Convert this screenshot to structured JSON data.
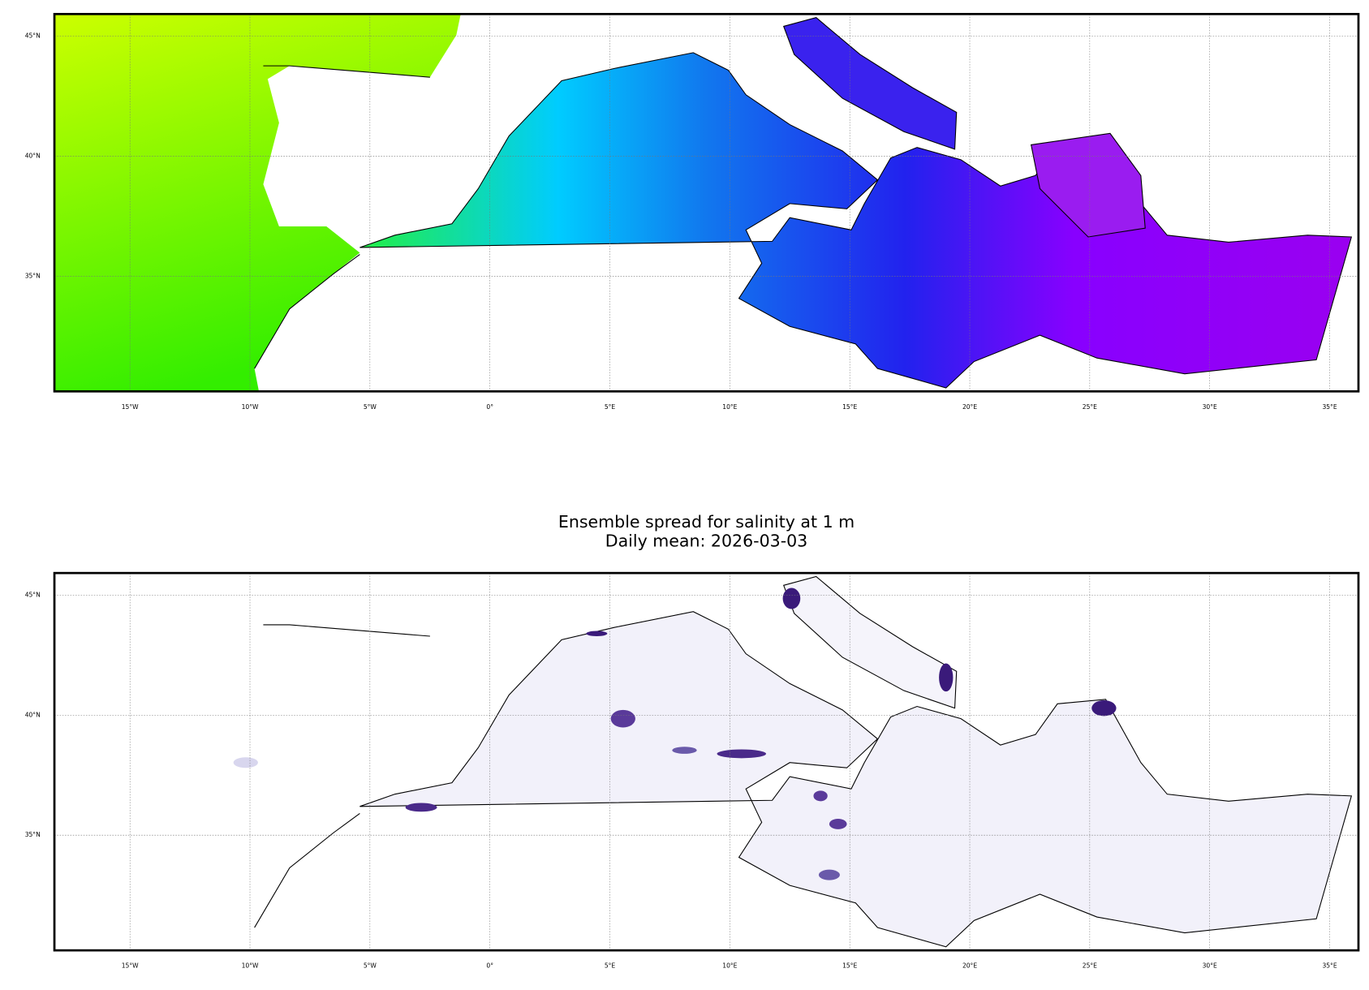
{
  "title": [
    "Ensemble spread for salinity at 1 m",
    "Daily mean: 2026-03-03"
  ],
  "panels": [
    {
      "xlim": [
        -18.15,
        36.2
      ],
      "ylim": [
        30.2,
        45.92
      ],
      "xticks": [
        {
          "value": -15,
          "label": "15°W"
        },
        {
          "value": -10,
          "label": "10°W"
        },
        {
          "value": -5,
          "label": "5°W"
        },
        {
          "value": 0,
          "label": "0°"
        },
        {
          "value": 5,
          "label": "5°E"
        },
        {
          "value": 10,
          "label": "10°E"
        },
        {
          "value": 15,
          "label": "15°E"
        },
        {
          "value": 20,
          "label": "20°E"
        },
        {
          "value": 25,
          "label": "25°E"
        },
        {
          "value": 30,
          "label": "30°E"
        },
        {
          "value": 35,
          "label": "35°E"
        }
      ],
      "yticks": [
        {
          "value": 45,
          "label": "45°N"
        },
        {
          "value": 40,
          "label": "40°N"
        },
        {
          "value": 35,
          "label": "35°N"
        }
      ]
    },
    {
      "xlim": [
        -18.15,
        36.2
      ],
      "ylim": [
        30.2,
        45.92
      ],
      "xticks": [
        {
          "value": -15,
          "label": "15°W"
        },
        {
          "value": -10,
          "label": "10°W"
        },
        {
          "value": -5,
          "label": "5°W"
        },
        {
          "value": 0,
          "label": "0°"
        },
        {
          "value": 5,
          "label": "5°E"
        },
        {
          "value": 10,
          "label": "10°E"
        },
        {
          "value": 15,
          "label": "15°E"
        },
        {
          "value": 20,
          "label": "20°E"
        },
        {
          "value": 25,
          "label": "25°E"
        },
        {
          "value": 30,
          "label": "30°E"
        },
        {
          "value": 35,
          "label": "35°E"
        }
      ],
      "yticks": [
        {
          "value": 45,
          "label": "45°N"
        },
        {
          "value": 40,
          "label": "40°N"
        },
        {
          "value": 35,
          "label": "35°N"
        }
      ]
    }
  ]
}
